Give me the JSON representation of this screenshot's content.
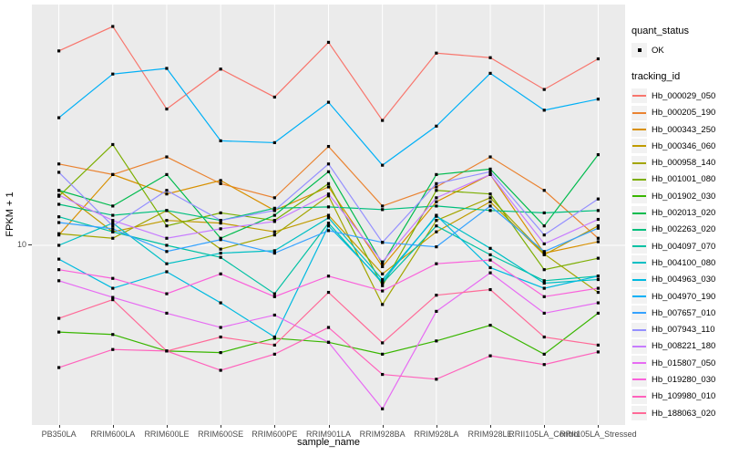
{
  "figure": {
    "panel_background": "#EBEBEB",
    "gridline_color": "#FFFFFF",
    "marker_color": "#000000",
    "tick_color": "#333333",
    "axis_text_color": "#4D4D4D"
  },
  "axes": {
    "x_title": "sample_name",
    "y_title": "FPKM + 1",
    "y_tick_label": "10"
  },
  "legend": {
    "quant_status": {
      "title": "quant_status",
      "items": [
        {
          "label": "OK"
        }
      ]
    },
    "tracking_id_title": "tracking_id"
  },
  "chart_data": {
    "type": "line",
    "title": "",
    "xlabel": "sample_name",
    "ylabel": "FPKM + 1",
    "y_scale": "log10",
    "y_ticks": [
      10
    ],
    "grid": "vertical-major-per-category, horizontal at y=10",
    "legend_position": "right",
    "point_shape": "small black square (quant_status OK)",
    "categories": [
      "PB350LA",
      "RRIM600LA",
      "RRIM600LE",
      "RRIM600SE",
      "RRIM600PE",
      "RRIM901LA",
      "RRIM928BA",
      "RRIM928LA",
      "RRIM928LE",
      "RRII105LA_Control",
      "RRII105LA_Stressed"
    ],
    "series": [
      {
        "name": "Hb_000029_050",
        "color": "#F8766D",
        "values": [
          138,
          192,
          63,
          108,
          74,
          155,
          54,
          134,
          126,
          82,
          124
        ]
      },
      {
        "name": "Hb_000205_190",
        "color": "#EA8331",
        "values": [
          30,
          26,
          33,
          23,
          19,
          38,
          17,
          22,
          33,
          21,
          11
        ]
      },
      {
        "name": "Hb_000343_250",
        "color": "#D89000",
        "values": [
          11.5,
          26,
          20,
          24,
          16,
          22,
          7.5,
          18,
          26,
          9,
          10.5
        ]
      },
      {
        "name": "Hb_000346_060",
        "color": "#C09B00",
        "values": [
          21,
          12,
          14,
          13.5,
          12,
          15,
          6.8,
          12,
          18,
          8.8,
          13
        ]
      },
      {
        "name": "Hb_000958_140",
        "color": "#A3A500",
        "values": [
          11.7,
          11,
          16,
          9.5,
          11.5,
          19.5,
          4.5,
          14,
          19,
          8.9,
          5.3
        ]
      },
      {
        "name": "Hb_001001_080",
        "color": "#7CAE00",
        "values": [
          19.4,
          39,
          13,
          15.5,
          14,
          23,
          5.8,
          21,
          20,
          7.2,
          8.4
        ]
      },
      {
        "name": "Hb_001902_030",
        "color": "#39B600",
        "values": [
          3.1,
          3.0,
          2.4,
          2.35,
          2.85,
          2.7,
          2.3,
          2.75,
          3.4,
          2.3,
          4.0
        ]
      },
      {
        "name": "Hb_002013_020",
        "color": "#00BB4E",
        "values": [
          21,
          17,
          26,
          11,
          15,
          27,
          7.8,
          26,
          28,
          13,
          34
        ]
      },
      {
        "name": "Hb_002263_020",
        "color": "#00BF7D",
        "values": [
          17.4,
          15,
          16,
          14,
          16.5,
          16.8,
          16.2,
          17,
          16,
          15.5,
          16
        ]
      },
      {
        "name": "Hb_004097_070",
        "color": "#00C1A3",
        "values": [
          14.7,
          12,
          10,
          8.5,
          5.2,
          13.5,
          6.0,
          13,
          8.8,
          6.2,
          6.6
        ]
      },
      {
        "name": "Hb_004100_080",
        "color": "#00BFC4",
        "values": [
          10,
          13.5,
          7.8,
          9.0,
          9.3,
          14.5,
          6.3,
          14.8,
          9.6,
          6.0,
          6.3
        ]
      },
      {
        "name": "Hb_004963_030",
        "color": "#00BAE0",
        "values": [
          8.3,
          5.6,
          7.0,
          4.6,
          2.9,
          13,
          6.1,
          15,
          7.4,
          5.6,
          6.6
        ]
      },
      {
        "name": "Hb_004970_190",
        "color": "#00B0F6",
        "values": [
          56,
          101,
          109,
          41,
          40,
          69,
          29.5,
          50,
          102,
          62,
          72
        ]
      },
      {
        "name": "Hb_007657_010",
        "color": "#35A2FF",
        "values": [
          13.6,
          12.5,
          9.2,
          10.8,
          9.0,
          12.2,
          10.4,
          9.8,
          17,
          9.2,
          12.6
        ]
      },
      {
        "name": "Hb_007943_110",
        "color": "#9590FF",
        "values": [
          26.8,
          13,
          21,
          14,
          16,
          30,
          10.4,
          23,
          27,
          11.5,
          18.7
        ]
      },
      {
        "name": "Hb_008221_180",
        "color": "#C77CFF",
        "values": [
          19.7,
          14,
          11,
          12.5,
          13.8,
          20,
          8.0,
          19,
          26,
          10.2,
          14.2
        ]
      },
      {
        "name": "Hb_015807_050",
        "color": "#E76BF3",
        "values": [
          6.2,
          4.95,
          4.0,
          3.3,
          3.9,
          2.7,
          1.1,
          4.1,
          6.9,
          4.0,
          4.6
        ]
      },
      {
        "name": "Hb_019280_030",
        "color": "#FA62DB",
        "values": [
          7.2,
          6.4,
          5.2,
          6.8,
          5.0,
          6.6,
          5.4,
          7.8,
          8.2,
          5.0,
          5.6
        ]
      },
      {
        "name": "Hb_109980_010",
        "color": "#FF62BC",
        "values": [
          1.92,
          2.45,
          2.4,
          1.85,
          2.3,
          3.3,
          1.75,
          1.64,
          2.25,
          2.0,
          2.37
        ]
      },
      {
        "name": "Hb_188063_020",
        "color": "#FF6A98",
        "values": [
          3.73,
          4.8,
          2.4,
          2.9,
          2.6,
          5.3,
          2.68,
          5.1,
          5.5,
          2.9,
          2.6
        ]
      }
    ]
  }
}
